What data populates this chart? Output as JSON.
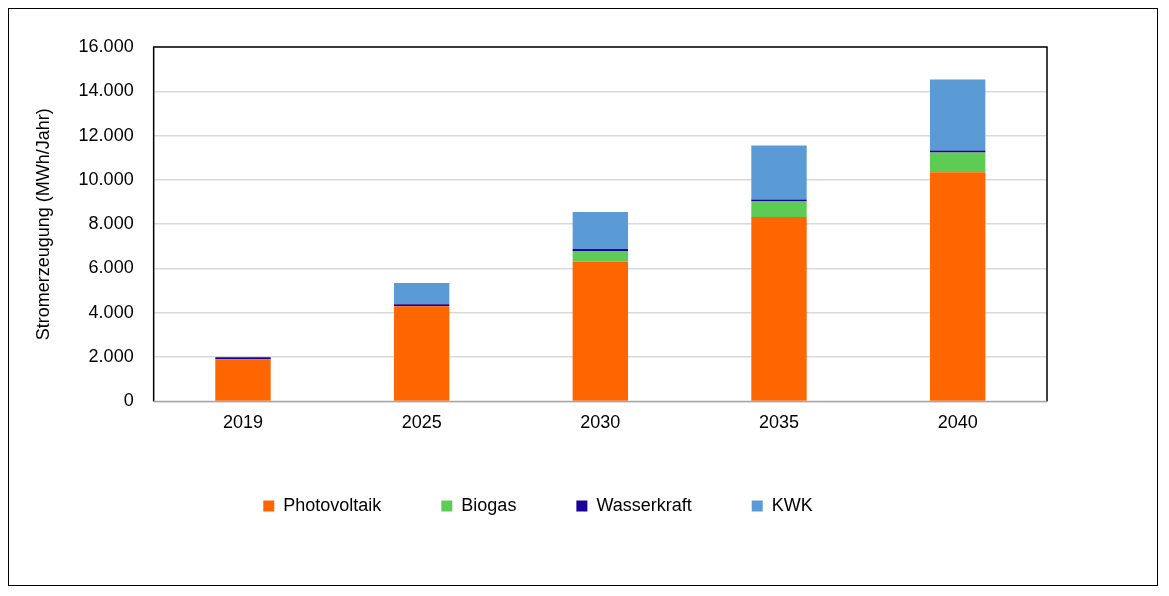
{
  "chart_data": {
    "type": "bar",
    "stacked": true,
    "ylabel": "Stromerzeugung (MWh/Jahr)",
    "categories": [
      "2019",
      "2025",
      "2030",
      "2035",
      "2040"
    ],
    "series": [
      {
        "name": "Photovoltaik",
        "color": "#ff6600",
        "values": [
          1900,
          4300,
          6300,
          8330,
          10350
        ]
      },
      {
        "name": "Biogas",
        "color": "#5ecc54",
        "values": [
          null,
          null,
          490,
          690,
          890
        ]
      },
      {
        "name": "Wasserkraft",
        "color": "#1a0099",
        "values": [
          60,
          40,
          40,
          40,
          40
        ]
      },
      {
        "name": "KWK",
        "color": "#5b9bd5",
        "values": [
          null,
          960,
          1670,
          2440,
          3200
        ]
      }
    ],
    "ylim": [
      0,
      16000
    ],
    "yticks": [
      {
        "value": 0,
        "label": "0"
      },
      {
        "value": 2000,
        "label": "2.000"
      },
      {
        "value": 4000,
        "label": "4.000"
      },
      {
        "value": 6000,
        "label": "6.000"
      },
      {
        "value": 8000,
        "label": "8.000"
      },
      {
        "value": 10000,
        "label": "10.000"
      },
      {
        "value": 12000,
        "label": "12.000"
      },
      {
        "value": 14000,
        "label": "14.000"
      },
      {
        "value": 16000,
        "label": "16.000"
      }
    ],
    "grid": "y",
    "legend": "bottom"
  }
}
